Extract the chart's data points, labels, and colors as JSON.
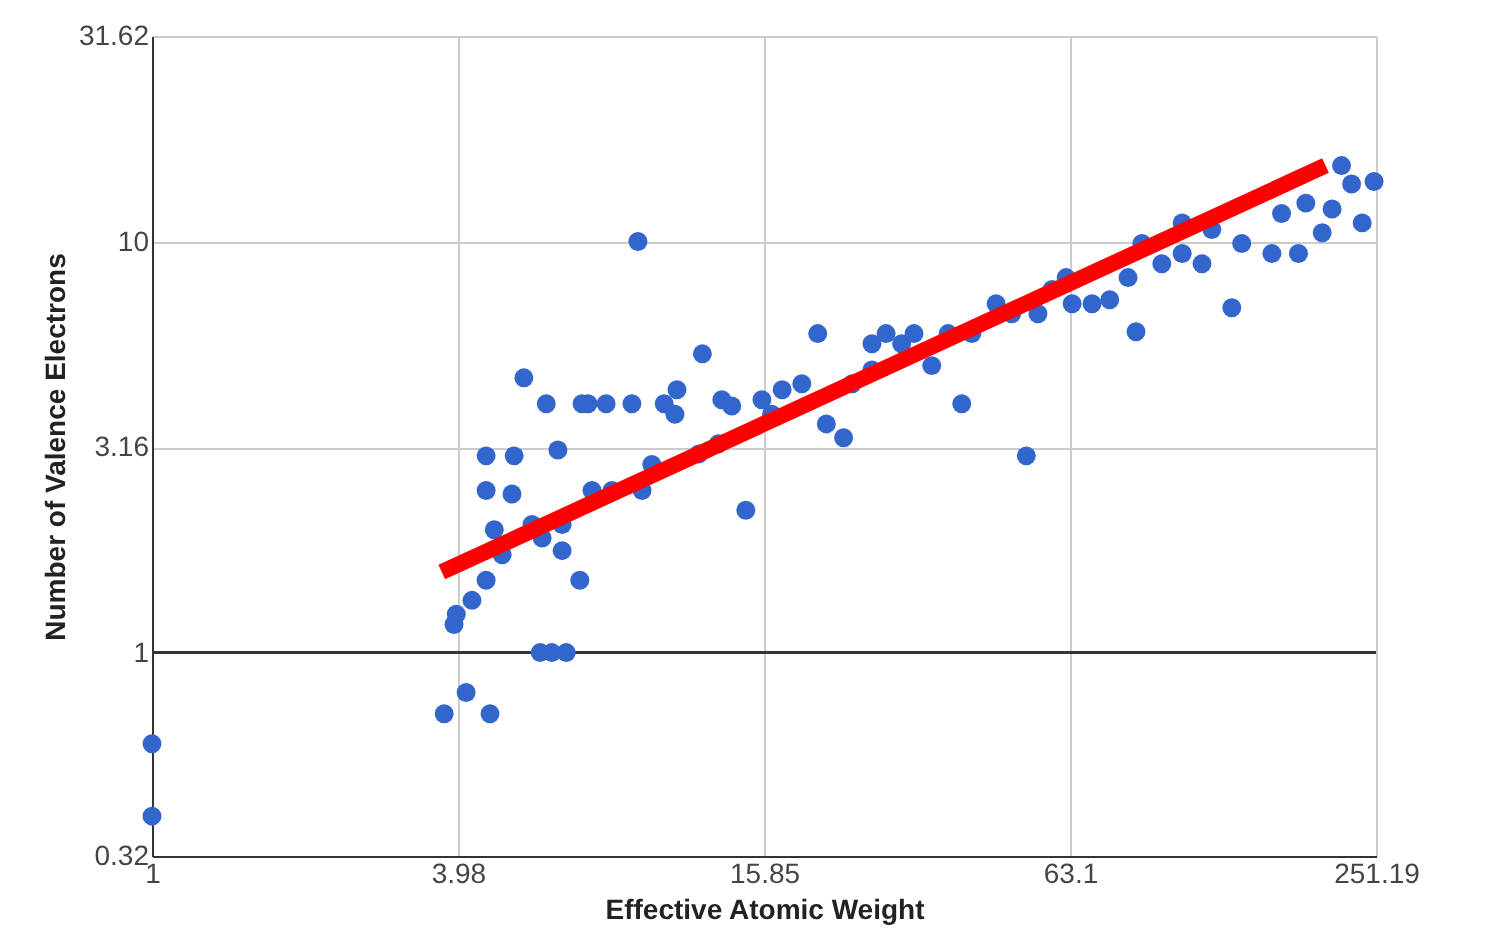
{
  "chart_data": {
    "type": "scatter",
    "xlabel": "Effective Atomic Weight",
    "ylabel": "Number of Valence Electrons",
    "log": "xy",
    "grid": true,
    "marker": "circle",
    "xlim": [
      1,
      251.19
    ],
    "ylim": [
      0.32,
      31.62
    ],
    "xticks": [
      1,
      3.98,
      15.85,
      63.1,
      251.19
    ],
    "yticks": [
      0.32,
      1,
      3.16,
      10,
      31.62
    ],
    "ref_lines": [
      {
        "axis": "y",
        "value": 1,
        "color": "#333333"
      }
    ],
    "series": [
      {
        "color": "#3366cc",
        "x": [
          1,
          1,
          3.74,
          4.13,
          4.6,
          3.91,
          3.95,
          5.77,
          6.08,
          6.49,
          4.24,
          4.52,
          4.86,
          4.69,
          4.52,
          4.52,
          5.13,
          5.36,
          5.93,
          6.25,
          6.9,
          6.37,
          5.82,
          6.97,
          7.16,
          7.77,
          8.73,
          10.1,
          8.97,
          7.29,
          7.98,
          9.14,
          9.55,
          10.6,
          10.7,
          12.0,
          11.8,
          12.9,
          14.6,
          13.7,
          15.7,
          17.2,
          16.4,
          18.8,
          20.2,
          21.0,
          22.7,
          23.6,
          25.8,
          27.5,
          29.5,
          31.2,
          33.8,
          36.4,
          38.7,
          40.5,
          45.2,
          51.8,
          54.6,
          62.0,
          63.7,
          69.7,
          75.5,
          85.0,
          87.3,
          82.0,
          95.5,
          104.7,
          114.5,
          119.7,
          131,
          137,
          157,
          164,
          177,
          183,
          197,
          206,
          215,
          225,
          236,
          249,
          104.7,
          58.2,
          48.5,
          25.8,
          13.1,
          6.37,
          5.56,
          5.08
        ],
        "values": [
          0.6,
          0.4,
          0.71,
          0.8,
          0.71,
          1.17,
          1.24,
          1,
          1,
          1,
          1.34,
          1.5,
          1.73,
          1.99,
          2.48,
          3.01,
          3.01,
          4.66,
          4.03,
          3.11,
          1.5,
          1.77,
          1.9,
          4.03,
          4.03,
          4.03,
          4.03,
          4.03,
          10,
          2.48,
          2.48,
          2.48,
          2.87,
          3.8,
          4.36,
          5.33,
          3.04,
          3.22,
          2.22,
          3.98,
          4.12,
          4.36,
          3.8,
          4.51,
          5.97,
          3.6,
          3.33,
          4.51,
          4.87,
          5.97,
          5.64,
          5.97,
          4.99,
          5.97,
          4.03,
          5.97,
          7.06,
          3.01,
          6.67,
          8.17,
          7.06,
          7.06,
          7.22,
          6.03,
          9.89,
          8.17,
          8.83,
          9.35,
          8.83,
          10.7,
          6.9,
          9.89,
          9.35,
          11.7,
          9.35,
          12.4,
          10.5,
          12.0,
          15.3,
          13.8,
          11.1,
          14.0,
          11.1,
          7.64,
          6.67,
          5.64,
          4.12,
          2.05,
          2.05,
          2.43
        ]
      },
      {
        "type": "line",
        "marker": "none",
        "color": "#ff0000",
        "x": [
          3.7,
          200
        ],
        "values": [
          1.57,
          15.3
        ]
      }
    ]
  }
}
